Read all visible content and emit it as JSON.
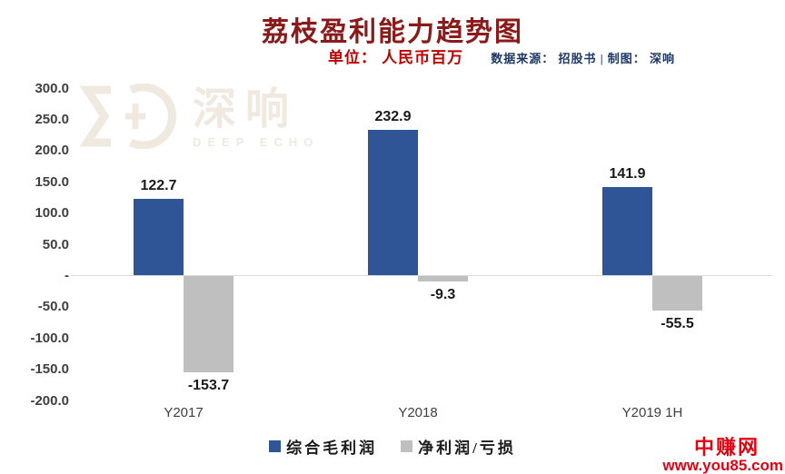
{
  "header": {
    "title": "荔枝盈利能力趋势图",
    "unit_label": "单位： 人民币百万",
    "source_label": "数据来源： 招股书 | 制图： 深响"
  },
  "watermark_logo": {
    "name": "深响",
    "subtitle": "DEEP ECHO"
  },
  "site_watermark": {
    "name": "中赚网",
    "url": "www.you85.com"
  },
  "colors": {
    "title": "#8B1A1A",
    "unit": "#C00000",
    "source": "#203864",
    "bar_positive": "#2F5597",
    "bar_negative": "#BFBFBF",
    "axis_line": "#D9D9D9",
    "axis_text": "#404040",
    "value_text": "#1A1A1A",
    "wm": "#F0E9E0",
    "site": "#E60012"
  },
  "chart_data": {
    "type": "bar",
    "title": "荔枝盈利能力趋势图",
    "unit": "人民币百万",
    "source": "数据来源：招股书 | 制图：深响",
    "categories": [
      "Y2017",
      "Y2018",
      "Y2019 1H"
    ],
    "series": [
      {
        "name": "综合毛利润",
        "color": "#2F5597",
        "values": [
          122.7,
          232.9,
          141.9
        ]
      },
      {
        "name": "净利润/亏损",
        "color": "#BFBFBF",
        "values": [
          -153.7,
          -9.3,
          -55.5
        ]
      }
    ],
    "y_ticks": [
      "300.0",
      "250.0",
      "200.0",
      "150.0",
      "100.0",
      "50.0",
      "-",
      "-50.0",
      "-100.0",
      "-150.0",
      "-200.0"
    ],
    "ylim": [
      -200,
      300
    ],
    "grid": "zero-line-only",
    "legend_position": "bottom"
  }
}
